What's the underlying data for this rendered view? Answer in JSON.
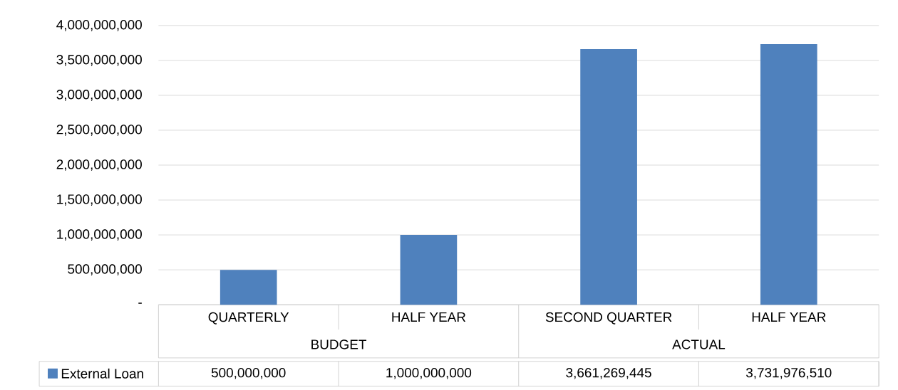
{
  "chart_data": {
    "type": "bar",
    "categories": [
      "QUARTERLY",
      "HALF YEAR",
      "SECOND QUARTER",
      "HALF YEAR"
    ],
    "series": [
      {
        "name": "External Loan",
        "color": "#4f81bd",
        "values": [
          500000000,
          1000000000,
          3661269445,
          3731976510
        ],
        "value_labels": [
          "500,000,000",
          "1,000,000,000",
          "3,661,269,445",
          "3,731,976,510"
        ]
      }
    ],
    "annotations": [
      "BUDGET",
      "ACTUAL"
    ],
    "ylim": [
      0,
      4000000000
    ],
    "yticks": [
      {
        "value": 0,
        "label": "-"
      },
      {
        "value": 500000000,
        "label": "500,000,000"
      },
      {
        "value": 1000000000,
        "label": "1,000,000,000"
      },
      {
        "value": 1500000000,
        "label": "1,500,000,000"
      },
      {
        "value": 2000000000,
        "label": "2,000,000,000"
      },
      {
        "value": 2500000000,
        "label": "2,500,000,000"
      },
      {
        "value": 3000000000,
        "label": "3,000,000,000"
      },
      {
        "value": 3500000000,
        "label": "3,500,000,000"
      },
      {
        "value": 4000000000,
        "label": "4,000,000,000"
      }
    ],
    "grid": "y",
    "legend": "bottom"
  }
}
